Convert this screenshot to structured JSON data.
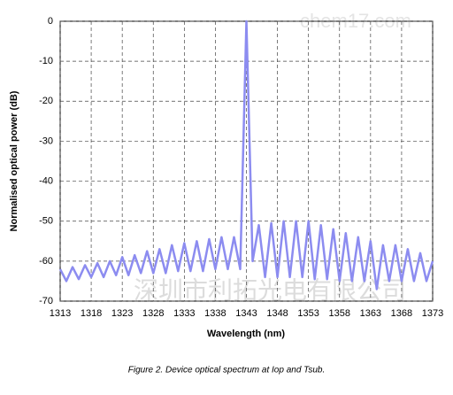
{
  "chart_data": {
    "type": "line",
    "x_label": "Wavelength (nm)",
    "y_label": "Normalised optical power (dB)",
    "caption": "Figure 2. Device optical spectrum at Iop and Tsub.",
    "watermarks": [
      "chem17.com",
      "深圳市利拓光电有限公司"
    ],
    "xlim": [
      1313,
      1373
    ],
    "xticks": [
      1313,
      1318,
      1323,
      1328,
      1333,
      1338,
      1343,
      1348,
      1353,
      1358,
      1363,
      1368,
      1373
    ],
    "ylim": [
      -70,
      0
    ],
    "yticks": [
      0,
      -10,
      -20,
      -30,
      -40,
      -50,
      -60,
      -70
    ],
    "grid": true,
    "series": [
      {
        "color": "#8c8cf0",
        "x": [
          1313,
          1314,
          1315,
          1316,
          1317,
          1318,
          1319,
          1320,
          1321,
          1322,
          1323,
          1324,
          1325,
          1326,
          1327,
          1328,
          1329,
          1330,
          1331,
          1332,
          1333,
          1334,
          1335,
          1336,
          1337,
          1338,
          1339,
          1340,
          1341,
          1342,
          1343,
          1344,
          1345,
          1346,
          1347,
          1348,
          1349,
          1350,
          1351,
          1352,
          1353,
          1354,
          1355,
          1356,
          1357,
          1358,
          1359,
          1360,
          1361,
          1362,
          1363,
          1364,
          1365,
          1366,
          1367,
          1368,
          1369,
          1370,
          1371,
          1372,
          1373
        ],
        "values": [
          -62,
          -65,
          -61.5,
          -64.5,
          -61,
          -64,
          -60.5,
          -64,
          -60,
          -63.5,
          -59,
          -63.5,
          -58.5,
          -63,
          -57.5,
          -63,
          -57,
          -63,
          -56,
          -62.5,
          -55.5,
          -62.5,
          -55,
          -62.5,
          -54.5,
          -62,
          -54,
          -62,
          -54,
          -62,
          0,
          -60,
          -51,
          -64,
          -50.5,
          -64,
          -50,
          -64,
          -50,
          -64,
          -50,
          -64.5,
          -51,
          -64.5,
          -52,
          -65,
          -53,
          -65,
          -54,
          -65,
          -55,
          -67,
          -56,
          -65,
          -56,
          -65,
          -57,
          -65,
          -58,
          -65,
          -60
        ]
      }
    ]
  }
}
